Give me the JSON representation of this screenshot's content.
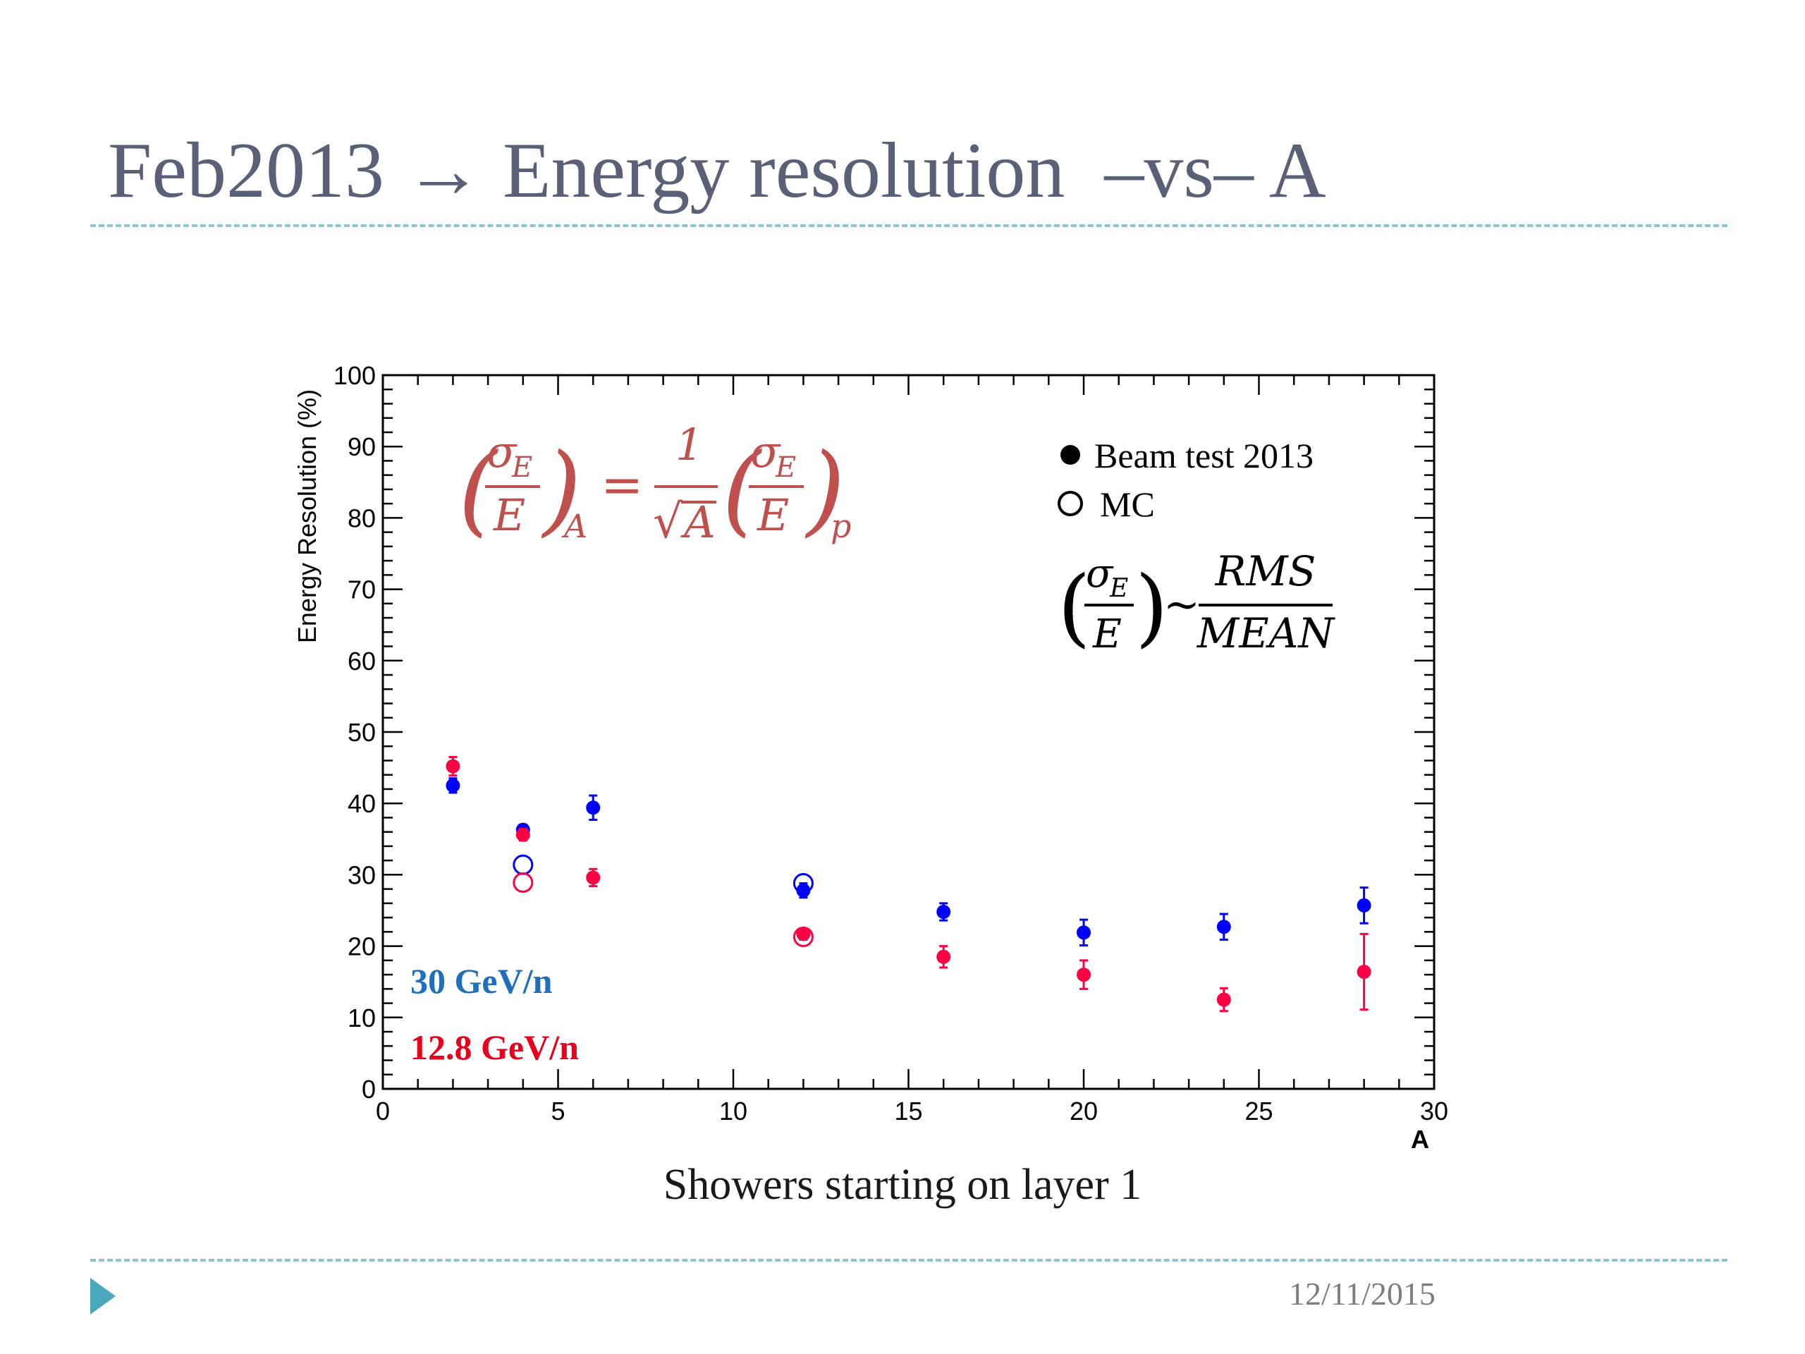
{
  "slide": {
    "title": "Feb2013 → Energy resolution  –vs– A",
    "date": "12/11/2015",
    "caption": "Showers starting on layer 1"
  },
  "colors": {
    "title": "#5b6079",
    "rule": "#8cc4cf",
    "bullet": "#4aa8bd",
    "beam30": "#0000ff",
    "beam12": "#ff0044",
    "formula": "#c0504d",
    "label30": "#1f6fbf",
    "label12": "#e8001c"
  },
  "icons": {
    "bullet": "triangle-right-icon"
  },
  "annotations": {
    "label_30": "30 GeV/n",
    "label_12": "12.8 GeV/n",
    "legend_beam": "Beam test 2013",
    "legend_mc": "MC",
    "formula_left": {
      "sigma": "σ",
      "sub": "E",
      "den": "E",
      "outer_sub": "A"
    },
    "formula_eq": "=",
    "formula_one": "1",
    "formula_sqrt": "√",
    "formula_A": "A",
    "formula_right": {
      "sigma": "σ",
      "sub": "E",
      "den": "E",
      "outer_sub": "p"
    },
    "rms_ratio": {
      "sigma": "σ",
      "sub": "E",
      "den": "E",
      "tilde": "~",
      "num": "RMS",
      "denom": "MEAN"
    }
  },
  "chart_data": {
    "type": "scatter",
    "xlabel": "A",
    "ylabel": "Energy Resolution (%)",
    "xlim": [
      0,
      30
    ],
    "ylim": [
      0,
      100
    ],
    "xticks": [
      0,
      5,
      10,
      15,
      20,
      25,
      30
    ],
    "yticks": [
      0,
      10,
      20,
      30,
      40,
      50,
      60,
      70,
      80,
      90,
      100
    ],
    "legend_placement": "top-right",
    "series": [
      {
        "key": "beam30",
        "marker": "filled",
        "color": "#0000ff",
        "points": [
          {
            "x": 2,
            "y": 42.5,
            "err": 1.0
          },
          {
            "x": 4,
            "y": 36.3,
            "err": 0.7
          },
          {
            "x": 6,
            "y": 39.4,
            "err": 1.7
          },
          {
            "x": 12,
            "y": 27.8,
            "err": 1.0
          },
          {
            "x": 16,
            "y": 24.8,
            "err": 1.2
          },
          {
            "x": 20,
            "y": 21.9,
            "err": 1.8
          },
          {
            "x": 24,
            "y": 22.7,
            "err": 1.8
          },
          {
            "x": 28,
            "y": 25.7,
            "err": 2.5
          }
        ]
      },
      {
        "key": "beam12",
        "marker": "filled",
        "color": "#ff0044",
        "points": [
          {
            "x": 2,
            "y": 45.2,
            "err": 1.3
          },
          {
            "x": 4,
            "y": 35.6,
            "err": 0.8
          },
          {
            "x": 6,
            "y": 29.6,
            "err": 1.2
          },
          {
            "x": 12,
            "y": 21.7,
            "err": 0.8
          },
          {
            "x": 16,
            "y": 18.5,
            "err": 1.5
          },
          {
            "x": 20,
            "y": 16.0,
            "err": 2.0
          },
          {
            "x": 24,
            "y": 12.5,
            "err": 1.6
          },
          {
            "x": 28,
            "y": 16.4,
            "err": 5.3
          }
        ]
      },
      {
        "key": "mc30",
        "marker": "open",
        "color": "#0000ff",
        "points": [
          {
            "x": 4,
            "y": 31.4
          },
          {
            "x": 12,
            "y": 28.8
          }
        ]
      },
      {
        "key": "mc12",
        "marker": "open",
        "color": "#ff0044",
        "points": [
          {
            "x": 4,
            "y": 28.9
          },
          {
            "x": 12,
            "y": 21.3
          }
        ]
      }
    ]
  }
}
